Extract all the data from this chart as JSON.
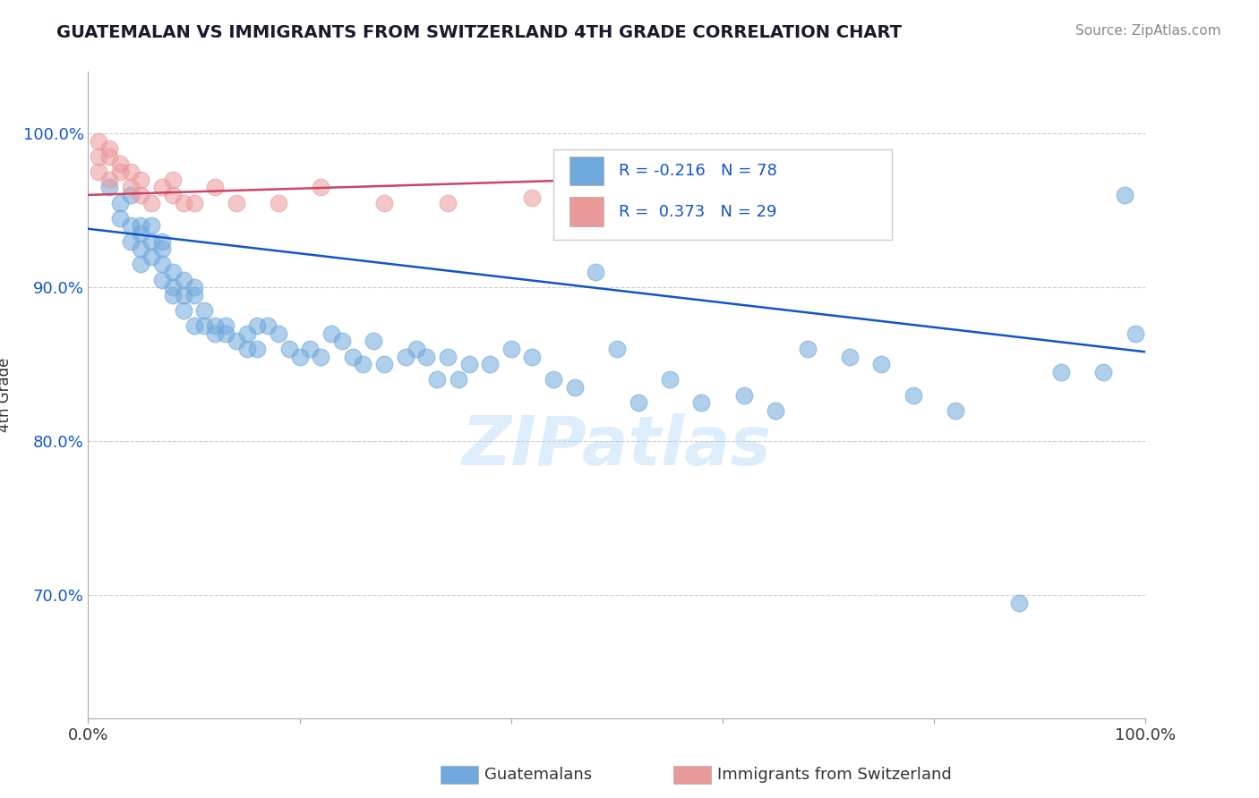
{
  "title": "GUATEMALAN VS IMMIGRANTS FROM SWITZERLAND 4TH GRADE CORRELATION CHART",
  "source": "Source: ZipAtlas.com",
  "ylabel": "4th Grade",
  "xlim": [
    0,
    1
  ],
  "ylim": [
    0.62,
    1.04
  ],
  "yticks": [
    0.7,
    0.8,
    0.9,
    1.0
  ],
  "ytick_labels": [
    "70.0%",
    "80.0%",
    "90.0%",
    "100.0%"
  ],
  "blue_scatter_x": [
    0.02,
    0.03,
    0.03,
    0.04,
    0.04,
    0.04,
    0.05,
    0.05,
    0.05,
    0.05,
    0.06,
    0.06,
    0.06,
    0.07,
    0.07,
    0.07,
    0.07,
    0.08,
    0.08,
    0.08,
    0.09,
    0.09,
    0.09,
    0.1,
    0.1,
    0.1,
    0.11,
    0.11,
    0.12,
    0.12,
    0.13,
    0.13,
    0.14,
    0.15,
    0.15,
    0.16,
    0.16,
    0.17,
    0.18,
    0.19,
    0.2,
    0.21,
    0.22,
    0.23,
    0.24,
    0.25,
    0.26,
    0.27,
    0.28,
    0.3,
    0.31,
    0.32,
    0.33,
    0.34,
    0.35,
    0.36,
    0.38,
    0.4,
    0.42,
    0.44,
    0.46,
    0.48,
    0.5,
    0.52,
    0.55,
    0.58,
    0.62,
    0.65,
    0.68,
    0.72,
    0.75,
    0.78,
    0.82,
    0.88,
    0.92,
    0.96,
    0.98,
    0.99
  ],
  "blue_scatter_y": [
    0.965,
    0.955,
    0.945,
    0.94,
    0.93,
    0.96,
    0.935,
    0.925,
    0.915,
    0.94,
    0.93,
    0.94,
    0.92,
    0.915,
    0.925,
    0.93,
    0.905,
    0.9,
    0.91,
    0.895,
    0.905,
    0.895,
    0.885,
    0.9,
    0.895,
    0.875,
    0.885,
    0.875,
    0.875,
    0.87,
    0.875,
    0.87,
    0.865,
    0.87,
    0.86,
    0.875,
    0.86,
    0.875,
    0.87,
    0.86,
    0.855,
    0.86,
    0.855,
    0.87,
    0.865,
    0.855,
    0.85,
    0.865,
    0.85,
    0.855,
    0.86,
    0.855,
    0.84,
    0.855,
    0.84,
    0.85,
    0.85,
    0.86,
    0.855,
    0.84,
    0.835,
    0.91,
    0.86,
    0.825,
    0.84,
    0.825,
    0.83,
    0.82,
    0.86,
    0.855,
    0.85,
    0.83,
    0.82,
    0.695,
    0.845,
    0.845,
    0.96,
    0.87
  ],
  "pink_scatter_x": [
    0.01,
    0.01,
    0.01,
    0.02,
    0.02,
    0.02,
    0.03,
    0.03,
    0.04,
    0.04,
    0.05,
    0.05,
    0.06,
    0.07,
    0.08,
    0.08,
    0.09,
    0.1,
    0.12,
    0.14,
    0.18,
    0.22,
    0.28,
    0.34,
    0.42,
    0.5,
    0.58,
    0.66,
    0.72
  ],
  "pink_scatter_y": [
    0.995,
    0.985,
    0.975,
    0.99,
    0.985,
    0.97,
    0.98,
    0.975,
    0.975,
    0.965,
    0.97,
    0.96,
    0.955,
    0.965,
    0.96,
    0.97,
    0.955,
    0.955,
    0.965,
    0.955,
    0.955,
    0.965,
    0.955,
    0.955,
    0.958,
    0.955,
    0.96,
    0.965,
    0.955
  ],
  "blue_line_x": [
    0.0,
    1.0
  ],
  "blue_line_y": [
    0.938,
    0.858
  ],
  "pink_line_x": [
    0.0,
    0.72
  ],
  "pink_line_y": [
    0.96,
    0.975
  ],
  "blue_color": "#6fa8dc",
  "pink_color": "#ea9999",
  "blue_line_color": "#1155cc",
  "pink_line_color": "#cc4466",
  "legend_blue_r": "-0.216",
  "legend_blue_n": "78",
  "legend_pink_r": "0.373",
  "legend_pink_n": "29",
  "grid_color": "#cccccc",
  "watermark": "ZIPatlas"
}
